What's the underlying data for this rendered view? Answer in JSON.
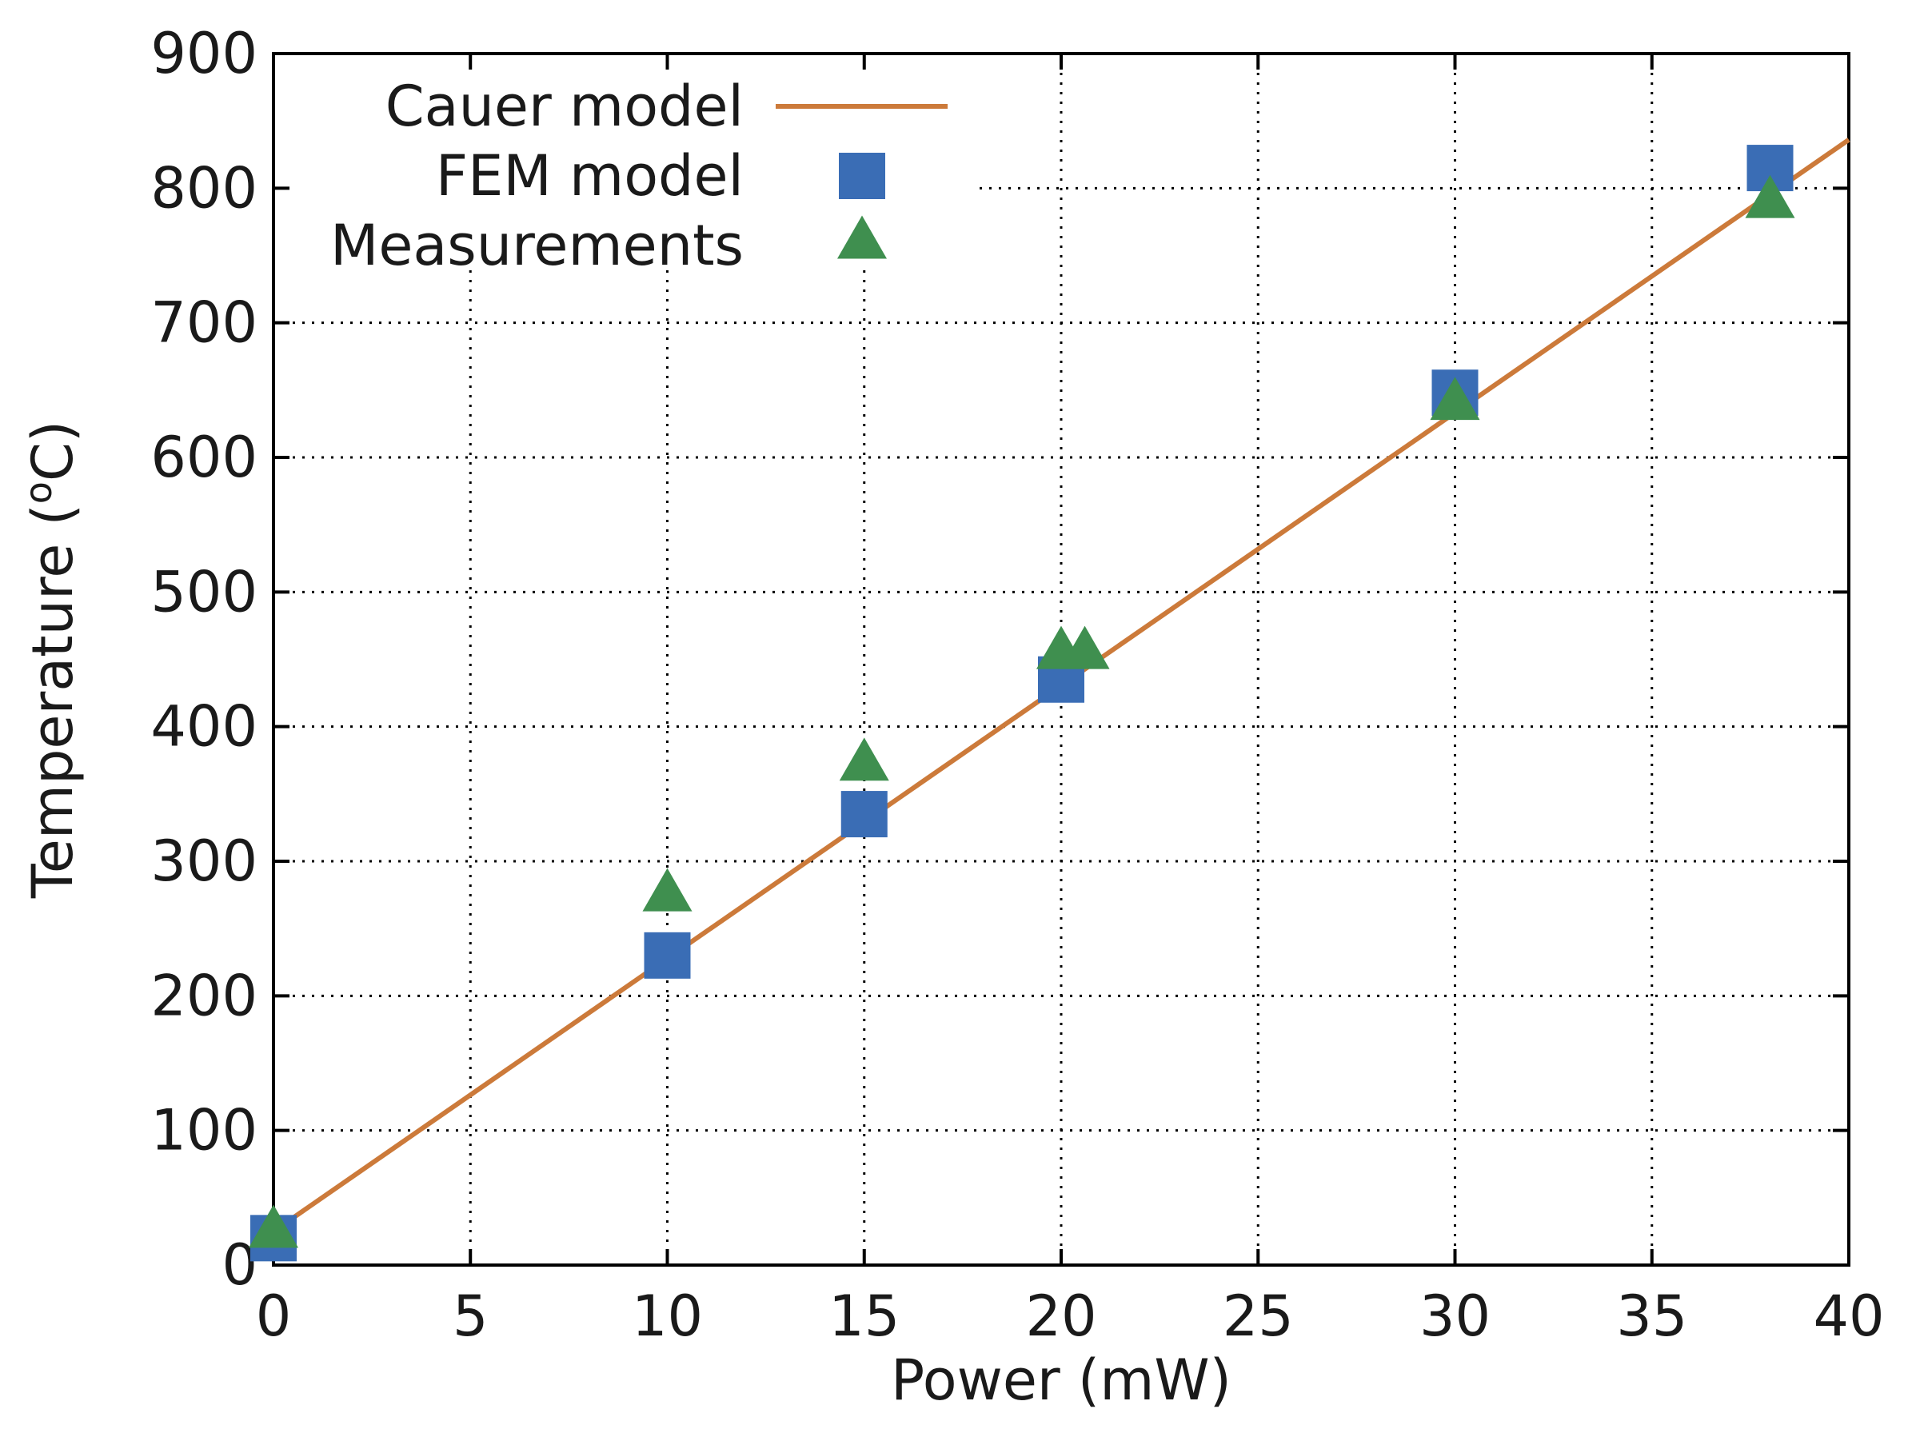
{
  "chart_data": {
    "type": "scatter",
    "title": "",
    "xlabel": "Power (mW)",
    "ylabel": "Temperature (°C)",
    "ylabel_parts": {
      "prefix": "Temperature (",
      "superscript": "o",
      "suffix": "C)"
    },
    "xlim": [
      0,
      40
    ],
    "ylim": [
      0,
      900
    ],
    "x_ticks": [
      0,
      5,
      10,
      15,
      20,
      25,
      30,
      35,
      40
    ],
    "y_ticks": [
      0,
      100,
      200,
      300,
      400,
      500,
      600,
      700,
      800,
      900
    ],
    "grid": true,
    "legend_position": "top-left",
    "series": [
      {
        "name": "Cauer model",
        "kind": "line",
        "color": "#cc7a3a",
        "x": [
          0,
          40
        ],
        "y": [
          25,
          836
        ]
      },
      {
        "name": "FEM model",
        "kind": "square",
        "color": "#3a6db5",
        "x": [
          0,
          10,
          15,
          20,
          30,
          38
        ],
        "y": [
          20,
          230,
          335,
          435,
          648,
          815
        ]
      },
      {
        "name": "Measurements",
        "kind": "triangle",
        "color": "#3f8f4f",
        "x": [
          0,
          10,
          15,
          20,
          20.6,
          30,
          38
        ],
        "y": [
          25,
          275,
          372,
          455,
          455,
          640,
          790
        ]
      }
    ]
  }
}
